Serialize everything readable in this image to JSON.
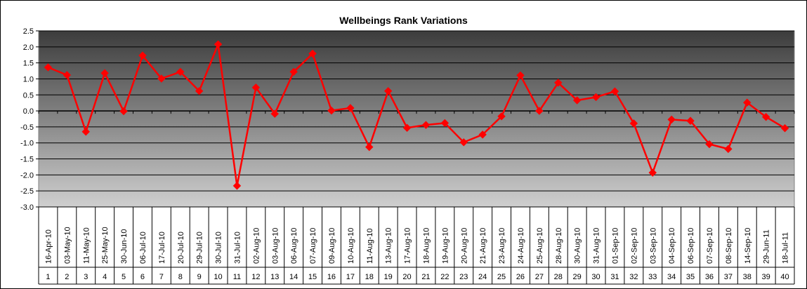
{
  "chart_data": {
    "type": "line",
    "title": "Wellbeings Rank Variations",
    "xlabel": "",
    "ylabel": "",
    "ylim": [
      -3.0,
      2.5
    ],
    "ytick_step": 0.5,
    "grid": true,
    "legend": "none",
    "series_color": "#ff0000",
    "categories": [
      "16-Apr-10",
      "03-May-10",
      "11-May-10",
      "25-May-10",
      "30-Jun-10",
      "06-Jul-10",
      "17-Jul-10",
      "20-Jul-10",
      "29-Jul-10",
      "30-Jul-10",
      "31-Jul-10",
      "02-Aug-10",
      "03-Aug-10",
      "06-Aug-10",
      "07-Aug-10",
      "09-Aug-10",
      "10-Aug-10",
      "11-Aug-10",
      "13-Aug-10",
      "17-Aug-10",
      "18-Aug-10",
      "19-Aug-10",
      "20-Aug-10",
      "21-Aug-10",
      "23-Aug-10",
      "24-Aug-10",
      "25-Aug-10",
      "28-Aug-10",
      "30-Aug-10",
      "31-Aug-10",
      "01-Sep-10",
      "02-Sep-10",
      "03-Sep-10",
      "04-Sep-10",
      "06-Sep-10",
      "07-Sep-10",
      "08-Sep-10",
      "14-Sep-10",
      "29-Jun-11",
      "18-Jul-11"
    ],
    "indices": [
      "1",
      "2",
      "3",
      "4",
      "5",
      "6",
      "7",
      "8",
      "9",
      "10",
      "11",
      "12",
      "13",
      "14",
      "15",
      "16",
      "17",
      "18",
      "19",
      "20",
      "21",
      "22",
      "23",
      "24",
      "25",
      "26",
      "27",
      "28",
      "29",
      "30",
      "31",
      "32",
      "33",
      "34",
      "35",
      "36",
      "37",
      "38",
      "39",
      "40"
    ],
    "series": [
      {
        "values": [
          1.36,
          1.12,
          -0.65,
          1.18,
          -0.01,
          1.73,
          1.01,
          1.22,
          0.62,
          2.08,
          -2.34,
          0.73,
          -0.09,
          1.22,
          1.79,
          0.01,
          0.09,
          -1.13,
          0.62,
          -0.53,
          -0.44,
          -0.38,
          -0.98,
          -0.74,
          -0.17,
          1.11,
          0.0,
          0.88,
          0.33,
          0.43,
          0.61,
          -0.39,
          -1.93,
          -0.27,
          -0.31,
          -1.04,
          -1.19,
          0.26,
          -0.19,
          -0.54
        ]
      }
    ]
  }
}
